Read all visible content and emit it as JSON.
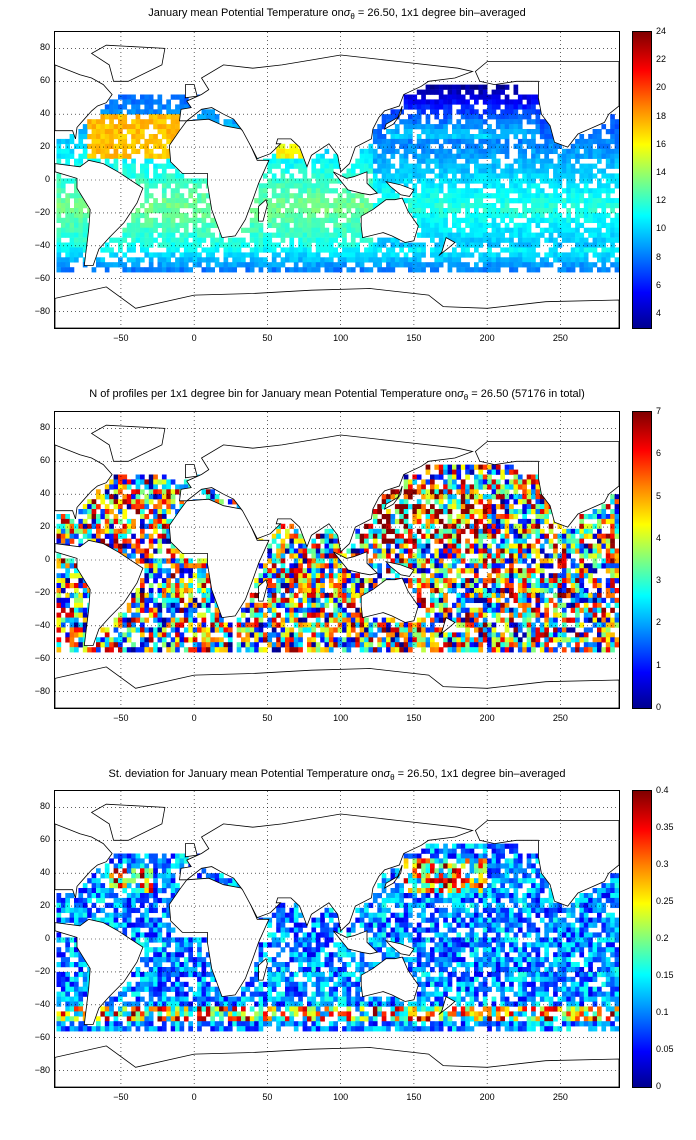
{
  "panels": [
    {
      "title_prefix": "January mean Potential Temperature on",
      "title_sigma": "σ",
      "title_sub": "θ",
      "title_suffix": " = 26.50, 1x1 degree bin–averaged",
      "colorbar_ticks": [
        "24",
        "22",
        "20",
        "18",
        "16",
        "14",
        "12",
        "10",
        "8",
        "6",
        "4"
      ],
      "field": "temperature"
    },
    {
      "title_prefix": "N of profiles per 1x1 degree bin for January mean Potential Temperature on",
      "title_sigma": "σ",
      "title_sub": "θ",
      "title_suffix": " = 26.50 (57176 in total)",
      "colorbar_ticks": [
        "7",
        "6",
        "5",
        "4",
        "3",
        "2",
        "1",
        "0"
      ],
      "field": "count"
    },
    {
      "title_prefix": "St. deviation for January mean Potential Temperature on",
      "title_sigma": "σ",
      "title_sub": "θ",
      "title_suffix": " = 26.50, 1x1 degree bin–averaged",
      "colorbar_ticks": [
        "0.4",
        "0.35",
        "0.3",
        "0.25",
        "0.2",
        "0.15",
        "0.1",
        "0.05",
        "0"
      ],
      "field": "std"
    }
  ],
  "y_ticks": [
    "80",
    "60",
    "40",
    "20",
    "0",
    "−20",
    "−40",
    "−60",
    "−80"
  ],
  "x_ticks": [
    "−50",
    "0",
    "50",
    "100",
    "150",
    "200",
    "250"
  ],
  "chart_data": {
    "type": "heatmap",
    "map_extent": {
      "lon": [
        -95,
        290
      ],
      "lat": [
        -90,
        90
      ]
    },
    "colormap": "jet",
    "grid": true,
    "colorbar_ranges": [
      [
        3,
        24
      ],
      [
        0,
        7
      ],
      [
        0,
        0.4
      ]
    ]
  }
}
